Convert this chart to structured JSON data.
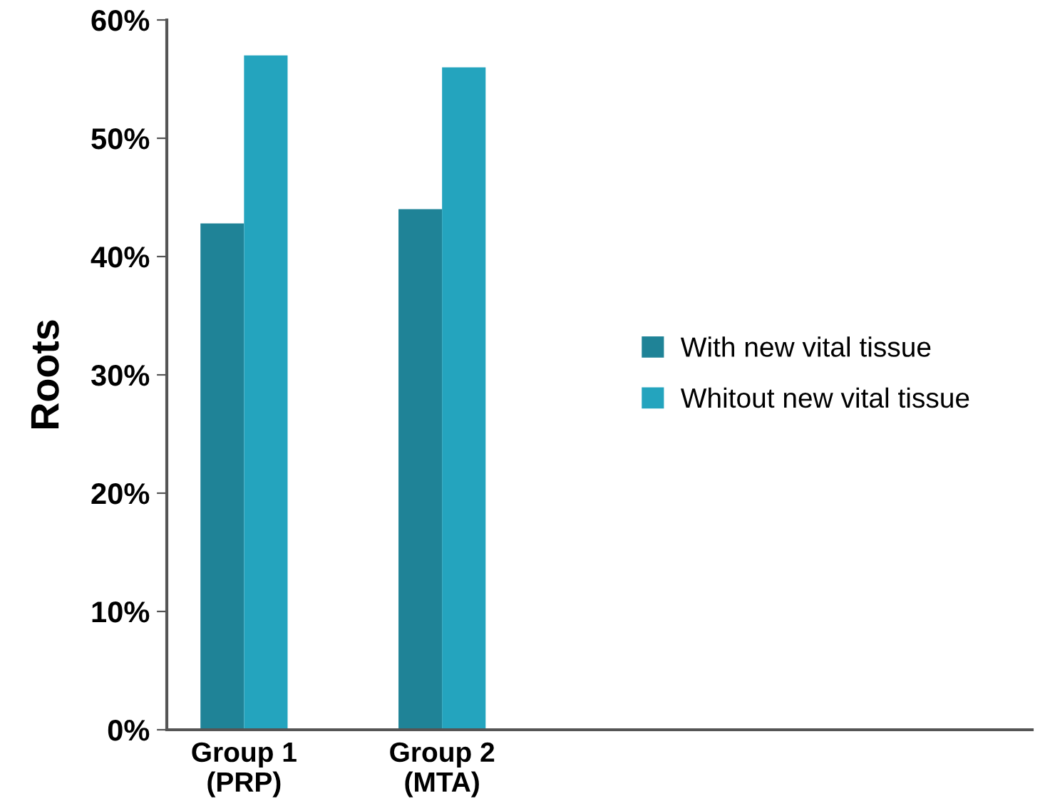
{
  "chart_data": {
    "type": "bar",
    "ylabel": "Roots",
    "categories": [
      "Group 1\n(PRP)",
      "Group 2\n(MTA)"
    ],
    "series": [
      {
        "name": "With new vital tissue",
        "color": "#1f8397",
        "values": [
          42.8,
          44.0
        ]
      },
      {
        "name": "Whitout new vital tissue",
        "color": "#24a4be",
        "values": [
          57,
          56
        ]
      }
    ],
    "ylim": [
      0,
      60
    ],
    "yticks": [
      {
        "value": 0,
        "label": "0%"
      },
      {
        "value": 10,
        "label": "10%"
      },
      {
        "value": 20,
        "label": "20%"
      },
      {
        "value": 30,
        "label": "30%"
      },
      {
        "value": 40,
        "label": "40%"
      },
      {
        "value": 50,
        "label": "50%"
      },
      {
        "value": 60,
        "label": "60%"
      }
    ],
    "grid": false,
    "legend": "right"
  }
}
